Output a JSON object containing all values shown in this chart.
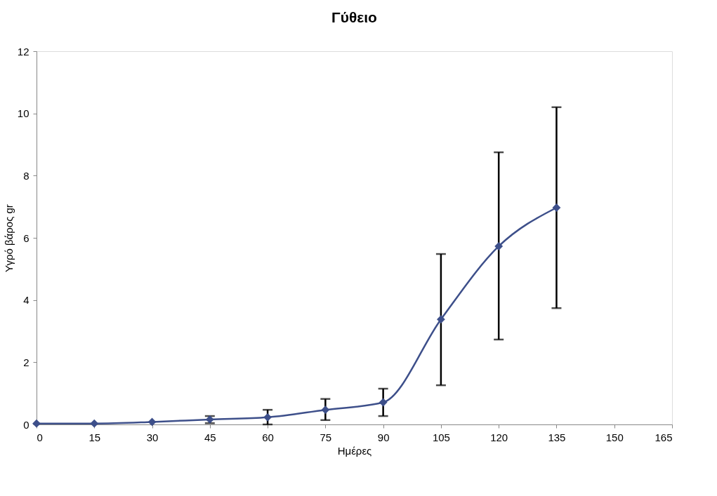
{
  "chart_data": {
    "type": "line",
    "title": "Γύθειο",
    "xlabel": "Ημέρες",
    "ylabel": "Υγρό βάρος gr",
    "x": [
      0,
      15,
      30,
      45,
      60,
      75,
      90,
      105,
      120,
      135
    ],
    "series": [
      {
        "color": "#3d4f8a",
        "values": [
          0.03,
          0.03,
          0.08,
          0.16,
          0.23,
          0.47,
          0.71,
          3.38,
          5.73,
          6.97
        ],
        "errors": [
          null,
          null,
          null,
          [
            0.04,
            0.27
          ],
          [
            0.0,
            0.47
          ],
          [
            0.14,
            0.82
          ],
          [
            0.27,
            1.15
          ],
          [
            1.26,
            5.48
          ],
          [
            2.73,
            8.75
          ],
          [
            3.74,
            10.2
          ]
        ]
      }
    ],
    "xlim": [
      0,
      165
    ],
    "xticks": [
      0,
      15,
      30,
      45,
      60,
      75,
      90,
      105,
      120,
      135,
      150,
      165
    ],
    "ylim": [
      0,
      12
    ],
    "yticks": [
      0,
      2,
      4,
      6,
      8,
      10,
      12
    ],
    "grid": false,
    "marker": "diamond",
    "line_style": "solid"
  }
}
